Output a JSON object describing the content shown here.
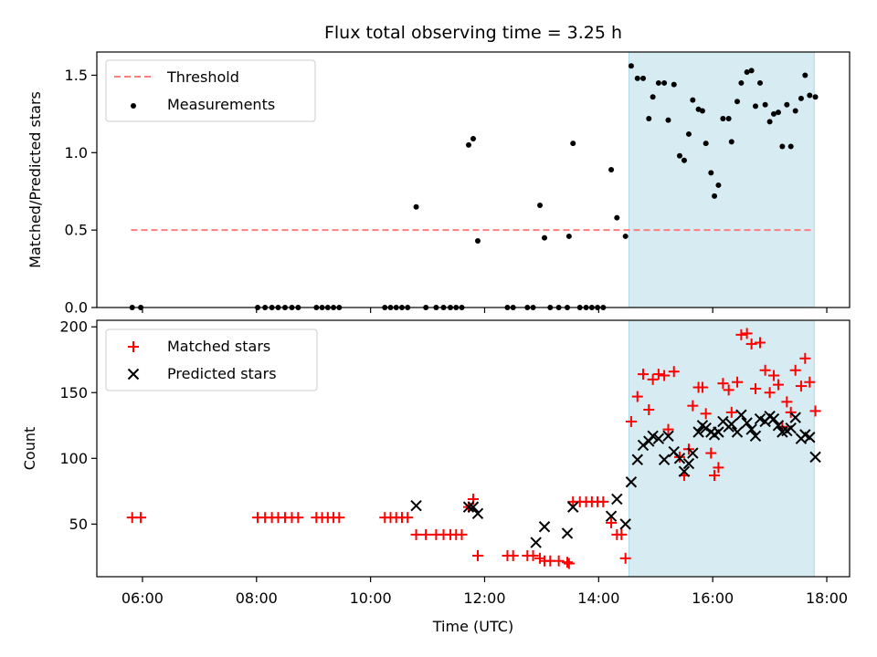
{
  "chart_data": {
    "title": "Flux total observing time = 3.25 h",
    "xlabel": "Time (UTC)",
    "x_tick_labels": [
      "06:00",
      "08:00",
      "10:00",
      "12:00",
      "14:00",
      "16:00",
      "18:00"
    ],
    "x_tick_hours": [
      6,
      8,
      10,
      12,
      14,
      16,
      18
    ],
    "xlim_hours": [
      5.2,
      18.4
    ],
    "shaded_region_hours": [
      14.53,
      17.78
    ],
    "colors": {
      "shade": "#add8e6",
      "threshold": "#ff7f7f",
      "measurements": "#000000",
      "matched": "#ff0000",
      "predicted": "#000000"
    },
    "panels": [
      {
        "type": "scatter",
        "ylabel": "Matched/Predicted stars",
        "ylim": [
          0,
          1.65
        ],
        "y_ticks": [
          0.0,
          0.5,
          1.0,
          1.5
        ],
        "y_tick_labels": [
          "0.0",
          "0.5",
          "1.0",
          "1.5"
        ],
        "legend_position": "top-left",
        "threshold": {
          "name": "Threshold",
          "value": 0.5,
          "x_range_hours": [
            5.8,
            17.78
          ]
        },
        "series": [
          {
            "name": "Measurements",
            "points": [
              [
                5.82,
                0
              ],
              [
                5.97,
                0
              ],
              [
                8.02,
                0
              ],
              [
                8.15,
                0
              ],
              [
                8.27,
                0
              ],
              [
                8.38,
                0
              ],
              [
                8.5,
                0
              ],
              [
                8.62,
                0
              ],
              [
                8.73,
                0
              ],
              [
                9.05,
                0
              ],
              [
                9.15,
                0
              ],
              [
                9.25,
                0
              ],
              [
                9.35,
                0
              ],
              [
                9.45,
                0
              ],
              [
                10.25,
                0
              ],
              [
                10.35,
                0
              ],
              [
                10.45,
                0
              ],
              [
                10.55,
                0
              ],
              [
                10.65,
                0
              ],
              [
                10.8,
                0.65
              ],
              [
                10.97,
                0
              ],
              [
                11.15,
                0
              ],
              [
                11.28,
                0
              ],
              [
                11.4,
                0
              ],
              [
                11.5,
                0
              ],
              [
                11.6,
                0
              ],
              [
                11.72,
                1.05
              ],
              [
                11.8,
                1.09
              ],
              [
                11.88,
                0.43
              ],
              [
                12.4,
                0
              ],
              [
                12.5,
                0
              ],
              [
                12.75,
                0
              ],
              [
                12.85,
                0
              ],
              [
                12.97,
                0.66
              ],
              [
                13.05,
                0.45
              ],
              [
                13.15,
                0
              ],
              [
                13.3,
                0
              ],
              [
                13.45,
                0
              ],
              [
                13.48,
                0.46
              ],
              [
                13.55,
                1.06
              ],
              [
                13.67,
                0
              ],
              [
                13.78,
                0
              ],
              [
                13.88,
                0
              ],
              [
                13.98,
                0
              ],
              [
                14.08,
                0
              ],
              [
                14.22,
                0.89
              ],
              [
                14.32,
                0.58
              ],
              [
                14.47,
                0.46
              ],
              [
                14.57,
                1.56
              ],
              [
                14.68,
                1.48
              ],
              [
                14.78,
                1.48
              ],
              [
                14.88,
                1.22
              ],
              [
                14.95,
                1.36
              ],
              [
                15.05,
                1.45
              ],
              [
                15.15,
                1.45
              ],
              [
                15.22,
                1.21
              ],
              [
                15.32,
                1.44
              ],
              [
                15.42,
                0.98
              ],
              [
                15.5,
                0.95
              ],
              [
                15.58,
                1.12
              ],
              [
                15.65,
                1.34
              ],
              [
                15.75,
                1.28
              ],
              [
                15.82,
                1.27
              ],
              [
                15.88,
                1.06
              ],
              [
                15.97,
                0.87
              ],
              [
                16.03,
                0.72
              ],
              [
                16.1,
                0.79
              ],
              [
                16.18,
                1.22
              ],
              [
                16.28,
                1.22
              ],
              [
                16.33,
                1.07
              ],
              [
                16.43,
                1.33
              ],
              [
                16.5,
                1.45
              ],
              [
                16.6,
                1.52
              ],
              [
                16.68,
                1.53
              ],
              [
                16.75,
                1.3
              ],
              [
                16.83,
                1.45
              ],
              [
                16.92,
                1.31
              ],
              [
                17.0,
                1.2
              ],
              [
                17.07,
                1.25
              ],
              [
                17.15,
                1.26
              ],
              [
                17.22,
                1.04
              ],
              [
                17.3,
                1.31
              ],
              [
                17.37,
                1.04
              ],
              [
                17.45,
                1.27
              ],
              [
                17.55,
                1.35
              ],
              [
                17.62,
                1.5
              ],
              [
                17.7,
                1.37
              ],
              [
                17.8,
                1.36
              ]
            ]
          }
        ]
      },
      {
        "type": "scatter",
        "ylabel": "Count",
        "ylim": [
          10,
          205
        ],
        "y_ticks": [
          50,
          100,
          150,
          200
        ],
        "y_tick_labels": [
          "50",
          "100",
          "150",
          "200"
        ],
        "legend_position": "top-left",
        "series": [
          {
            "name": "Matched stars",
            "marker": "plus",
            "points": [
              [
                5.82,
                55
              ],
              [
                5.97,
                55
              ],
              [
                8.02,
                55
              ],
              [
                8.15,
                55
              ],
              [
                8.27,
                55
              ],
              [
                8.38,
                55
              ],
              [
                8.5,
                55
              ],
              [
                8.62,
                55
              ],
              [
                8.73,
                55
              ],
              [
                9.05,
                55
              ],
              [
                9.15,
                55
              ],
              [
                9.25,
                55
              ],
              [
                9.35,
                55
              ],
              [
                9.45,
                55
              ],
              [
                10.25,
                55
              ],
              [
                10.35,
                55
              ],
              [
                10.45,
                55
              ],
              [
                10.55,
                55
              ],
              [
                10.65,
                55
              ],
              [
                10.8,
                42
              ],
              [
                10.97,
                42
              ],
              [
                11.15,
                42
              ],
              [
                11.28,
                42
              ],
              [
                11.4,
                42
              ],
              [
                11.5,
                42
              ],
              [
                11.6,
                42
              ],
              [
                11.72,
                63
              ],
              [
                11.8,
                69
              ],
              [
                11.88,
                26
              ],
              [
                12.4,
                26
              ],
              [
                12.5,
                26
              ],
              [
                12.75,
                26
              ],
              [
                12.85,
                26
              ],
              [
                12.97,
                24
              ],
              [
                13.05,
                22
              ],
              [
                13.15,
                22
              ],
              [
                13.3,
                22
              ],
              [
                13.45,
                21
              ],
              [
                13.48,
                20
              ],
              [
                13.55,
                67
              ],
              [
                13.67,
                67
              ],
              [
                13.78,
                67
              ],
              [
                13.88,
                67
              ],
              [
                13.98,
                67
              ],
              [
                14.08,
                67
              ],
              [
                14.22,
                51
              ],
              [
                14.32,
                42
              ],
              [
                14.4,
                42
              ],
              [
                14.47,
                24
              ],
              [
                14.57,
                128
              ],
              [
                14.68,
                147
              ],
              [
                14.78,
                164
              ],
              [
                14.88,
                137
              ],
              [
                14.95,
                160
              ],
              [
                15.05,
                164
              ],
              [
                15.15,
                163
              ],
              [
                15.22,
                122
              ],
              [
                15.32,
                166
              ],
              [
                15.42,
                101
              ],
              [
                15.5,
                87
              ],
              [
                15.58,
                107
              ],
              [
                15.65,
                140
              ],
              [
                15.75,
                154
              ],
              [
                15.82,
                154
              ],
              [
                15.88,
                134
              ],
              [
                15.97,
                104
              ],
              [
                16.03,
                87
              ],
              [
                16.1,
                93
              ],
              [
                16.18,
                157
              ],
              [
                16.28,
                152
              ],
              [
                16.33,
                135
              ],
              [
                16.43,
                158
              ],
              [
                16.5,
                194
              ],
              [
                16.6,
                195
              ],
              [
                16.68,
                187
              ],
              [
                16.75,
                153
              ],
              [
                16.83,
                188
              ],
              [
                16.92,
                167
              ],
              [
                17.0,
                150
              ],
              [
                17.07,
                163
              ],
              [
                17.15,
                156
              ],
              [
                17.22,
                124
              ],
              [
                17.3,
                143
              ],
              [
                17.37,
                135
              ],
              [
                17.45,
                167
              ],
              [
                17.55,
                155
              ],
              [
                17.62,
                176
              ],
              [
                17.7,
                158
              ],
              [
                17.8,
                136
              ]
            ]
          },
          {
            "name": "Predicted stars",
            "marker": "x",
            "points": [
              [
                10.8,
                64
              ],
              [
                11.72,
                63
              ],
              [
                11.8,
                63
              ],
              [
                11.88,
                58
              ],
              [
                12.9,
                36
              ],
              [
                13.05,
                48
              ],
              [
                13.45,
                43
              ],
              [
                13.55,
                63
              ],
              [
                14.22,
                56
              ],
              [
                14.32,
                69
              ],
              [
                14.47,
                50
              ],
              [
                14.57,
                82
              ],
              [
                14.68,
                99
              ],
              [
                14.78,
                110
              ],
              [
                14.88,
                113
              ],
              [
                14.95,
                117
              ],
              [
                15.05,
                115
              ],
              [
                15.15,
                99
              ],
              [
                15.22,
                117
              ],
              [
                15.32,
                105
              ],
              [
                15.42,
                100
              ],
              [
                15.5,
                90
              ],
              [
                15.58,
                96
              ],
              [
                15.65,
                104
              ],
              [
                15.75,
                120
              ],
              [
                15.82,
                125
              ],
              [
                15.88,
                123
              ],
              [
                15.97,
                120
              ],
              [
                16.03,
                118
              ],
              [
                16.1,
                120
              ],
              [
                16.18,
                128
              ],
              [
                16.28,
                124
              ],
              [
                16.33,
                126
              ],
              [
                16.43,
                120
              ],
              [
                16.5,
                133
              ],
              [
                16.6,
                127
              ],
              [
                16.68,
                122
              ],
              [
                16.75,
                117
              ],
              [
                16.83,
                130
              ],
              [
                16.92,
                128
              ],
              [
                17.0,
                132
              ],
              [
                17.07,
                130
              ],
              [
                17.15,
                125
              ],
              [
                17.22,
                120
              ],
              [
                17.3,
                121
              ],
              [
                17.37,
                123
              ],
              [
                17.45,
                131
              ],
              [
                17.55,
                115
              ],
              [
                17.62,
                118
              ],
              [
                17.7,
                116
              ],
              [
                17.8,
                101
              ]
            ]
          }
        ]
      }
    ]
  }
}
